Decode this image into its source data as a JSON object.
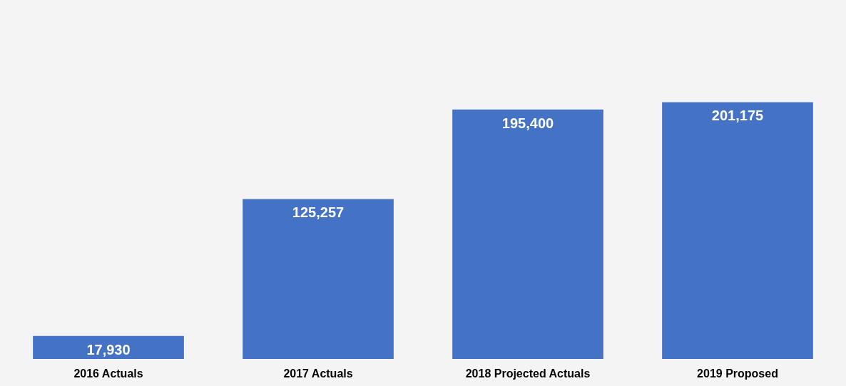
{
  "chart_data": {
    "type": "bar",
    "categories": [
      "2016 Actuals",
      "2017 Actuals",
      "2018 Projected Actuals",
      "2019 Proposed"
    ],
    "values": [
      17930,
      125257,
      195400,
      201175
    ],
    "color": "#4472c4",
    "grid": false,
    "value_labels": [
      "17,930",
      "125,257",
      "195,400",
      "201,175"
    ]
  }
}
